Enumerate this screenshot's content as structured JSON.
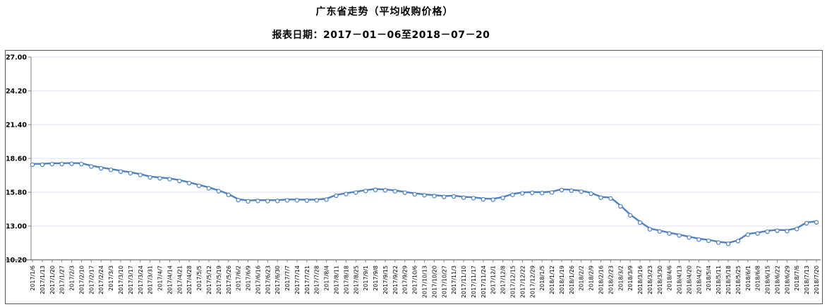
{
  "header": {
    "title": "广东省走势（平均收购价格）",
    "subtitle": "报表日期：2017－01－06至2018－07－20"
  },
  "chart_data": {
    "type": "line",
    "title": "广东省走势（平均收购价格）",
    "subtitle": "报表日期：2017－01－06至2018－07－20",
    "series_name": "平均收购价格",
    "legend_position": "none",
    "grid": true,
    "marker": "open-circle",
    "ylim": [
      10.2,
      27.0
    ],
    "y_ticks": [
      "10.20",
      "13.00",
      "15.80",
      "18.60",
      "21.40",
      "24.20",
      "27.00"
    ],
    "categories": [
      "2017/1/6",
      "2017/1/13",
      "2017/1/20",
      "2017/1/27",
      "2017/2/3",
      "2017/2/10",
      "2017/2/17",
      "2017/2/24",
      "2017/3/3",
      "2017/3/10",
      "2017/3/17",
      "2017/3/24",
      "2017/3/31",
      "2017/4/7",
      "2017/4/14",
      "2017/4/21",
      "2017/4/28",
      "2017/5/5",
      "2017/5/12",
      "2017/5/19",
      "2017/5/26",
      "2017/6/2",
      "2017/6/9",
      "2017/6/16",
      "2017/6/23",
      "2017/6/30",
      "2017/7/7",
      "2017/7/14",
      "2017/7/21",
      "2017/7/28",
      "2017/8/4",
      "2017/8/11",
      "2017/8/18",
      "2017/8/25",
      "2017/9/1",
      "2017/9/8",
      "2017/9/15",
      "2017/9/22",
      "2017/9/29",
      "2017/10/6",
      "2017/10/13",
      "2017/10/20",
      "2017/10/27",
      "2017/11/3",
      "2017/11/10",
      "2017/11/17",
      "2017/11/24",
      "2017/12/1",
      "2017/12/8",
      "2017/12/15",
      "2017/12/22",
      "2017/12/29",
      "2018/1/5",
      "2018/1/12",
      "2018/1/19",
      "2018/1/26",
      "2018/2/2",
      "2018/2/9",
      "2018/2/16",
      "2018/2/23",
      "2018/3/2",
      "2018/3/9",
      "2018/3/16",
      "2018/3/23",
      "2018/3/30",
      "2018/4/6",
      "2018/4/13",
      "2018/4/20",
      "2018/4/27",
      "2018/5/4",
      "2018/5/11",
      "2018/5/18",
      "2018/5/25",
      "2018/6/1",
      "2018/6/8",
      "2018/6/15",
      "2018/6/22",
      "2018/6/29",
      "2018/7/6",
      "2018/7/13",
      "2018/7/20"
    ],
    "values": [
      18.15,
      18.15,
      18.2,
      18.2,
      18.22,
      18.2,
      18.0,
      17.85,
      17.72,
      17.58,
      17.45,
      17.3,
      17.1,
      17.02,
      16.95,
      16.8,
      16.62,
      16.4,
      16.2,
      15.95,
      15.65,
      15.22,
      15.12,
      15.15,
      15.14,
      15.15,
      15.2,
      15.2,
      15.18,
      15.2,
      15.26,
      15.58,
      15.72,
      15.84,
      15.97,
      16.07,
      16.03,
      15.95,
      15.83,
      15.7,
      15.62,
      15.56,
      15.48,
      15.52,
      15.42,
      15.38,
      15.28,
      15.25,
      15.4,
      15.65,
      15.78,
      15.82,
      15.8,
      15.85,
      16.05,
      16.0,
      15.92,
      15.75,
      15.42,
      15.35,
      14.7,
      13.95,
      13.35,
      12.8,
      12.62,
      12.45,
      12.28,
      12.12,
      11.95,
      11.85,
      11.7,
      11.6,
      11.82,
      12.35,
      12.45,
      12.6,
      12.68,
      12.65,
      12.82,
      13.3,
      13.38
    ]
  },
  "colors": {
    "line": "#4f81bd",
    "marker_fill": "#ffffff",
    "grid": "#dbe3ef",
    "axis": "#7f7f7f",
    "x_axis": "#4d4d4d",
    "frame_border": "#5a5a5a",
    "text": "#000000",
    "background": "#ffffff"
  }
}
